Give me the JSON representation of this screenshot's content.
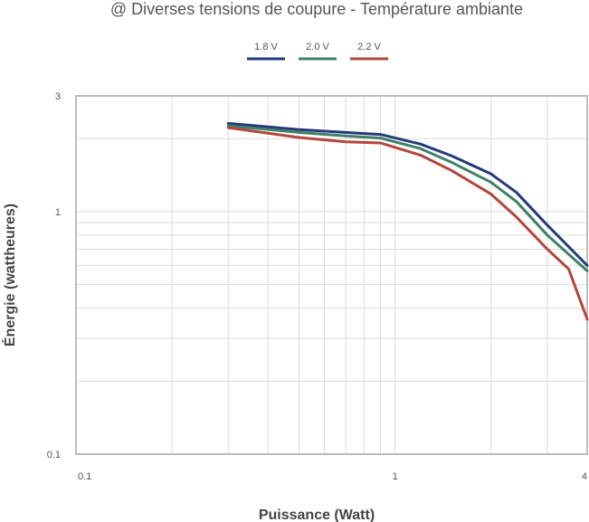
{
  "chart_data": {
    "type": "line",
    "title": "@ Diverses tensions de coupure - Température ambiante",
    "xlabel": "Puissance (Watt)",
    "ylabel": "Énergie (wattheures)",
    "x_scale": "log",
    "y_scale": "log",
    "xlim": [
      0.1,
      4
    ],
    "ylim": [
      0.1,
      3
    ],
    "x_ticks": [
      {
        "value": 0.1,
        "label": "0.1"
      },
      {
        "value": 1,
        "label": "1"
      },
      {
        "value": 4,
        "label": "4"
      }
    ],
    "y_ticks": [
      {
        "value": 3,
        "label": "3"
      },
      {
        "value": 1,
        "label": "1"
      },
      {
        "value": 0.1,
        "label": "0.1"
      }
    ],
    "grid": true,
    "legend_position": "top-center",
    "series": [
      {
        "name": "1.8 V",
        "color": "#243a7a",
        "points": [
          [
            0.3,
            2.31
          ],
          [
            0.5,
            2.18
          ],
          [
            0.7,
            2.12
          ],
          [
            0.9,
            2.08
          ],
          [
            1.2,
            1.9
          ],
          [
            1.5,
            1.7
          ],
          [
            2.0,
            1.43
          ],
          [
            2.4,
            1.2
          ],
          [
            3.0,
            0.88
          ],
          [
            4.0,
            0.6
          ]
        ]
      },
      {
        "name": "2.0 V",
        "color": "#3f8068",
        "points": [
          [
            0.3,
            2.26
          ],
          [
            0.5,
            2.12
          ],
          [
            0.7,
            2.05
          ],
          [
            0.9,
            2.01
          ],
          [
            1.2,
            1.82
          ],
          [
            1.5,
            1.6
          ],
          [
            2.0,
            1.32
          ],
          [
            2.4,
            1.1
          ],
          [
            3.0,
            0.8
          ],
          [
            4.0,
            0.57
          ]
        ]
      },
      {
        "name": "2.2 V",
        "color": "#b3463d",
        "points": [
          [
            0.3,
            2.22
          ],
          [
            0.5,
            2.02
          ],
          [
            0.7,
            1.94
          ],
          [
            0.9,
            1.92
          ],
          [
            1.2,
            1.71
          ],
          [
            1.5,
            1.48
          ],
          [
            2.0,
            1.18
          ],
          [
            2.4,
            0.95
          ],
          [
            3.0,
            0.7
          ],
          [
            3.5,
            0.58
          ],
          [
            4.0,
            0.36
          ]
        ]
      }
    ]
  }
}
